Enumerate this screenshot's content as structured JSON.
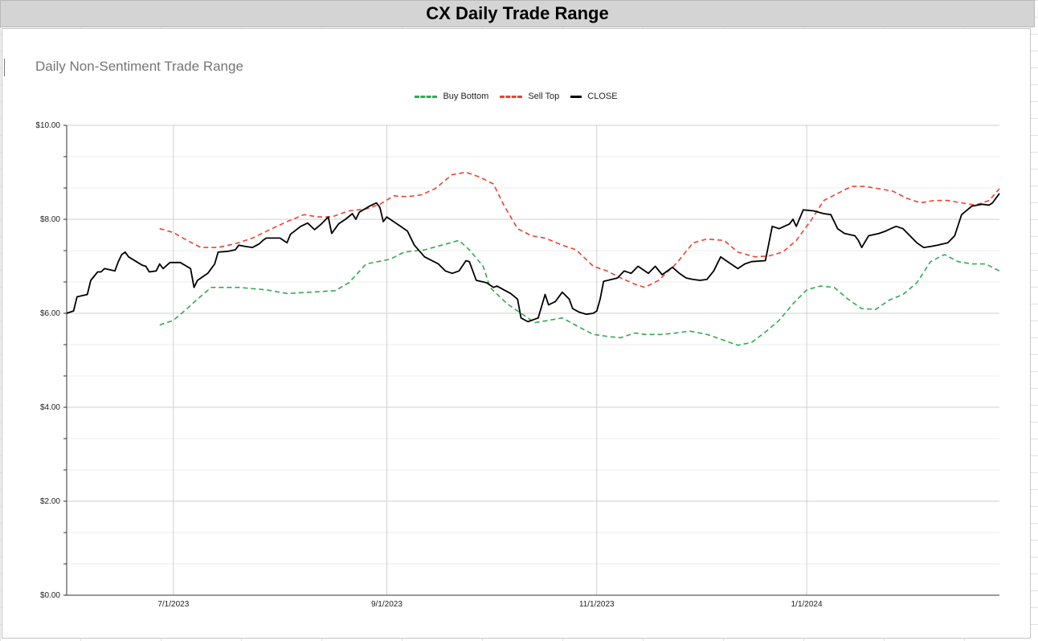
{
  "sheet": {
    "title": "CX Daily Trade Range"
  },
  "chart_data": {
    "type": "line",
    "title": "Daily Non-Sentiment Trade Range",
    "xlabel": "",
    "ylabel": "",
    "ylim": [
      0,
      10
    ],
    "y_ticks": [
      "$0.00",
      "$2.00",
      "$4.00",
      "$6.00",
      "$8.00",
      "$10.00"
    ],
    "y_tick_values": [
      0,
      2,
      4,
      6,
      8,
      10
    ],
    "xlim": [
      "2023-05-31",
      "2024-02-26"
    ],
    "x_ticks": [
      "7/1/2023",
      "9/1/2023",
      "11/1/2023",
      "1/1/2024"
    ],
    "x_tick_dates": [
      "2023-07-01",
      "2023-09-01",
      "2023-11-01",
      "2024-01-01"
    ],
    "grid": true,
    "legend_position": "top",
    "series": [
      {
        "name": "Buy Bottom",
        "color": "#34a853",
        "dash": true,
        "points": [
          [
            "2023-06-27",
            5.75
          ],
          [
            "2023-07-01",
            5.85
          ],
          [
            "2023-07-05",
            6.1
          ],
          [
            "2023-07-08",
            6.3
          ],
          [
            "2023-07-12",
            6.55
          ],
          [
            "2023-07-20",
            6.55
          ],
          [
            "2023-07-28",
            6.5
          ],
          [
            "2023-08-03",
            6.42
          ],
          [
            "2023-08-10",
            6.45
          ],
          [
            "2023-08-17",
            6.48
          ],
          [
            "2023-08-21",
            6.65
          ],
          [
            "2023-08-26",
            7.05
          ],
          [
            "2023-09-02",
            7.15
          ],
          [
            "2023-09-06",
            7.3
          ],
          [
            "2023-09-12",
            7.35
          ],
          [
            "2023-09-17",
            7.45
          ],
          [
            "2023-09-22",
            7.55
          ],
          [
            "2023-09-25",
            7.35
          ],
          [
            "2023-09-29",
            7.0
          ],
          [
            "2023-10-01",
            6.55
          ],
          [
            "2023-10-06",
            6.2
          ],
          [
            "2023-10-10",
            6.0
          ],
          [
            "2023-10-14",
            5.8
          ],
          [
            "2023-10-18",
            5.85
          ],
          [
            "2023-10-22",
            5.9
          ],
          [
            "2023-10-27",
            5.7
          ],
          [
            "2023-10-31",
            5.55
          ],
          [
            "2023-11-05",
            5.5
          ],
          [
            "2023-11-08",
            5.48
          ],
          [
            "2023-11-12",
            5.58
          ],
          [
            "2023-11-15",
            5.55
          ],
          [
            "2023-11-20",
            5.55
          ],
          [
            "2023-11-24",
            5.58
          ],
          [
            "2023-11-28",
            5.62
          ],
          [
            "2023-12-03",
            5.55
          ],
          [
            "2023-12-07",
            5.45
          ],
          [
            "2023-12-12",
            5.32
          ],
          [
            "2023-12-16",
            5.38
          ],
          [
            "2023-12-20",
            5.6
          ],
          [
            "2023-12-24",
            5.85
          ],
          [
            "2023-12-28",
            6.2
          ],
          [
            "2024-01-01",
            6.5
          ],
          [
            "2024-01-05",
            6.58
          ],
          [
            "2024-01-09",
            6.55
          ],
          [
            "2024-01-13",
            6.3
          ],
          [
            "2024-01-17",
            6.1
          ],
          [
            "2024-01-21",
            6.08
          ],
          [
            "2024-01-25",
            6.28
          ],
          [
            "2024-01-29",
            6.4
          ],
          [
            "2024-02-02",
            6.65
          ],
          [
            "2024-02-06",
            7.1
          ],
          [
            "2024-02-10",
            7.25
          ],
          [
            "2024-02-14",
            7.1
          ],
          [
            "2024-02-18",
            7.05
          ],
          [
            "2024-02-22",
            7.05
          ],
          [
            "2024-02-26",
            6.9
          ]
        ]
      },
      {
        "name": "Sell Top",
        "color": "#ea4335",
        "dash": true,
        "points": [
          [
            "2023-06-27",
            7.8
          ],
          [
            "2023-07-01",
            7.72
          ],
          [
            "2023-07-05",
            7.55
          ],
          [
            "2023-07-09",
            7.4
          ],
          [
            "2023-07-14",
            7.4
          ],
          [
            "2023-07-19",
            7.48
          ],
          [
            "2023-07-24",
            7.6
          ],
          [
            "2023-07-29",
            7.78
          ],
          [
            "2023-08-03",
            7.95
          ],
          [
            "2023-08-08",
            8.1
          ],
          [
            "2023-08-12",
            8.05
          ],
          [
            "2023-08-16",
            8.05
          ],
          [
            "2023-08-21",
            8.18
          ],
          [
            "2023-08-26",
            8.22
          ],
          [
            "2023-08-30",
            8.32
          ],
          [
            "2023-09-03",
            8.5
          ],
          [
            "2023-09-07",
            8.48
          ],
          [
            "2023-09-11",
            8.52
          ],
          [
            "2023-09-15",
            8.65
          ],
          [
            "2023-09-20",
            8.95
          ],
          [
            "2023-09-24",
            9.0
          ],
          [
            "2023-09-28",
            8.9
          ],
          [
            "2023-10-02",
            8.75
          ],
          [
            "2023-10-05",
            8.3
          ],
          [
            "2023-10-09",
            7.8
          ],
          [
            "2023-10-13",
            7.65
          ],
          [
            "2023-10-17",
            7.6
          ],
          [
            "2023-10-22",
            7.45
          ],
          [
            "2023-10-26",
            7.35
          ],
          [
            "2023-10-31",
            7.0
          ],
          [
            "2023-11-04",
            6.9
          ],
          [
            "2023-11-08",
            6.75
          ],
          [
            "2023-11-12",
            6.62
          ],
          [
            "2023-11-15",
            6.55
          ],
          [
            "2023-11-19",
            6.7
          ],
          [
            "2023-11-24",
            7.05
          ],
          [
            "2023-11-29",
            7.5
          ],
          [
            "2023-12-03",
            7.58
          ],
          [
            "2023-12-08",
            7.55
          ],
          [
            "2023-12-12",
            7.3
          ],
          [
            "2023-12-17",
            7.2
          ],
          [
            "2023-12-21",
            7.22
          ],
          [
            "2023-12-25",
            7.3
          ],
          [
            "2023-12-29",
            7.55
          ],
          [
            "2024-01-02",
            7.95
          ],
          [
            "2024-01-06",
            8.4
          ],
          [
            "2024-01-10",
            8.55
          ],
          [
            "2024-01-14",
            8.7
          ],
          [
            "2024-01-18",
            8.7
          ],
          [
            "2024-01-22",
            8.65
          ],
          [
            "2024-01-26",
            8.6
          ],
          [
            "2024-01-30",
            8.45
          ],
          [
            "2024-02-03",
            8.35
          ],
          [
            "2024-02-07",
            8.4
          ],
          [
            "2024-02-11",
            8.4
          ],
          [
            "2024-02-15",
            8.35
          ],
          [
            "2024-02-19",
            8.3
          ],
          [
            "2024-02-23",
            8.4
          ],
          [
            "2024-02-26",
            8.65
          ]
        ]
      },
      {
        "name": "CLOSE",
        "color": "#000000",
        "dash": false,
        "points": [
          [
            "2023-05-31",
            6.0
          ],
          [
            "2023-06-02",
            6.05
          ],
          [
            "2023-06-03",
            6.35
          ],
          [
            "2023-06-06",
            6.4
          ],
          [
            "2023-06-07",
            6.7
          ],
          [
            "2023-06-09",
            6.88
          ],
          [
            "2023-06-10",
            6.88
          ],
          [
            "2023-06-11",
            6.95
          ],
          [
            "2023-06-14",
            6.9
          ],
          [
            "2023-06-15",
            7.1
          ],
          [
            "2023-06-16",
            7.25
          ],
          [
            "2023-06-17",
            7.3
          ],
          [
            "2023-06-18",
            7.2
          ],
          [
            "2023-06-22",
            7.02
          ],
          [
            "2023-06-23",
            7.0
          ],
          [
            "2023-06-24",
            6.88
          ],
          [
            "2023-06-26",
            6.9
          ],
          [
            "2023-06-27",
            7.05
          ],
          [
            "2023-06-28",
            6.95
          ],
          [
            "2023-06-30",
            7.08
          ],
          [
            "2023-07-03",
            7.08
          ],
          [
            "2023-07-06",
            6.95
          ],
          [
            "2023-07-07",
            6.55
          ],
          [
            "2023-07-08",
            6.7
          ],
          [
            "2023-07-11",
            6.85
          ],
          [
            "2023-07-13",
            7.05
          ],
          [
            "2023-07-14",
            7.3
          ],
          [
            "2023-07-17",
            7.32
          ],
          [
            "2023-07-19",
            7.35
          ],
          [
            "2023-07-20",
            7.45
          ],
          [
            "2023-07-22",
            7.42
          ],
          [
            "2023-07-24",
            7.4
          ],
          [
            "2023-07-26",
            7.48
          ],
          [
            "2023-07-27",
            7.55
          ],
          [
            "2023-07-28",
            7.6
          ],
          [
            "2023-07-30",
            7.6
          ],
          [
            "2023-08-01",
            7.6
          ],
          [
            "2023-08-03",
            7.5
          ],
          [
            "2023-08-04",
            7.68
          ],
          [
            "2023-08-07",
            7.85
          ],
          [
            "2023-08-09",
            7.92
          ],
          [
            "2023-08-11",
            7.78
          ],
          [
            "2023-08-13",
            7.9
          ],
          [
            "2023-08-15",
            8.05
          ],
          [
            "2023-08-16",
            7.7
          ],
          [
            "2023-08-18",
            7.9
          ],
          [
            "2023-08-20",
            8.0
          ],
          [
            "2023-08-22",
            8.12
          ],
          [
            "2023-08-23",
            8.0
          ],
          [
            "2023-08-24",
            8.15
          ],
          [
            "2023-08-27",
            8.28
          ],
          [
            "2023-08-29",
            8.35
          ],
          [
            "2023-08-30",
            8.25
          ],
          [
            "2023-08-31",
            7.95
          ],
          [
            "2023-09-01",
            8.05
          ],
          [
            "2023-09-05",
            7.85
          ],
          [
            "2023-09-07",
            7.75
          ],
          [
            "2023-09-09",
            7.45
          ],
          [
            "2023-09-12",
            7.2
          ],
          [
            "2023-09-16",
            7.05
          ],
          [
            "2023-09-18",
            6.9
          ],
          [
            "2023-09-20",
            6.85
          ],
          [
            "2023-09-22",
            6.9
          ],
          [
            "2023-09-24",
            7.12
          ],
          [
            "2023-09-25",
            7.1
          ],
          [
            "2023-09-27",
            6.7
          ],
          [
            "2023-09-30",
            6.65
          ],
          [
            "2023-10-02",
            6.55
          ],
          [
            "2023-10-03",
            6.58
          ],
          [
            "2023-10-05",
            6.5
          ],
          [
            "2023-10-07",
            6.42
          ],
          [
            "2023-10-09",
            6.3
          ],
          [
            "2023-10-10",
            5.9
          ],
          [
            "2023-10-12",
            5.82
          ],
          [
            "2023-10-15",
            5.9
          ],
          [
            "2023-10-17",
            6.4
          ],
          [
            "2023-10-18",
            6.18
          ],
          [
            "2023-10-20",
            6.25
          ],
          [
            "2023-10-22",
            6.45
          ],
          [
            "2023-10-24",
            6.3
          ],
          [
            "2023-10-25",
            6.1
          ],
          [
            "2023-10-27",
            6.02
          ],
          [
            "2023-10-29",
            5.98
          ],
          [
            "2023-10-31",
            6.0
          ],
          [
            "2023-11-01",
            6.05
          ],
          [
            "2023-11-02",
            6.3
          ],
          [
            "2023-11-03",
            6.68
          ],
          [
            "2023-11-07",
            6.75
          ],
          [
            "2023-11-09",
            6.9
          ],
          [
            "2023-11-11",
            6.85
          ],
          [
            "2023-11-13",
            7.0
          ],
          [
            "2023-11-16",
            6.85
          ],
          [
            "2023-11-18",
            7.0
          ],
          [
            "2023-11-20",
            6.82
          ],
          [
            "2023-11-23",
            6.98
          ],
          [
            "2023-11-25",
            6.85
          ],
          [
            "2023-11-27",
            6.75
          ],
          [
            "2023-11-29",
            6.72
          ],
          [
            "2023-12-01",
            6.7
          ],
          [
            "2023-12-03",
            6.72
          ],
          [
            "2023-12-05",
            6.9
          ],
          [
            "2023-12-07",
            7.2
          ],
          [
            "2023-12-09",
            7.1
          ],
          [
            "2023-12-12",
            6.95
          ],
          [
            "2023-12-14",
            7.05
          ],
          [
            "2023-12-16",
            7.1
          ],
          [
            "2023-12-20",
            7.12
          ],
          [
            "2023-12-22",
            7.85
          ],
          [
            "2023-12-24",
            7.8
          ],
          [
            "2023-12-27",
            7.9
          ],
          [
            "2023-12-28",
            8.0
          ],
          [
            "2023-12-29",
            7.85
          ],
          [
            "2023-12-31",
            8.2
          ],
          [
            "2024-01-03",
            8.18
          ],
          [
            "2024-01-06",
            8.12
          ],
          [
            "2024-01-08",
            8.1
          ],
          [
            "2024-01-10",
            7.8
          ],
          [
            "2024-01-12",
            7.7
          ],
          [
            "2024-01-15",
            7.65
          ],
          [
            "2024-01-16",
            7.55
          ],
          [
            "2024-01-17",
            7.4
          ],
          [
            "2024-01-19",
            7.65
          ],
          [
            "2024-01-22",
            7.7
          ],
          [
            "2024-01-24",
            7.75
          ],
          [
            "2024-01-26",
            7.82
          ],
          [
            "2024-01-27",
            7.85
          ],
          [
            "2024-01-29",
            7.8
          ],
          [
            "2024-02-02",
            7.5
          ],
          [
            "2024-02-04",
            7.4
          ],
          [
            "2024-02-06",
            7.42
          ],
          [
            "2024-02-08",
            7.45
          ],
          [
            "2024-02-11",
            7.5
          ],
          [
            "2024-02-13",
            7.65
          ],
          [
            "2024-02-15",
            8.1
          ],
          [
            "2024-02-18",
            8.28
          ],
          [
            "2024-02-21",
            8.32
          ],
          [
            "2024-02-23",
            8.3
          ],
          [
            "2024-02-24",
            8.35
          ],
          [
            "2024-02-26",
            8.55
          ]
        ]
      }
    ]
  }
}
